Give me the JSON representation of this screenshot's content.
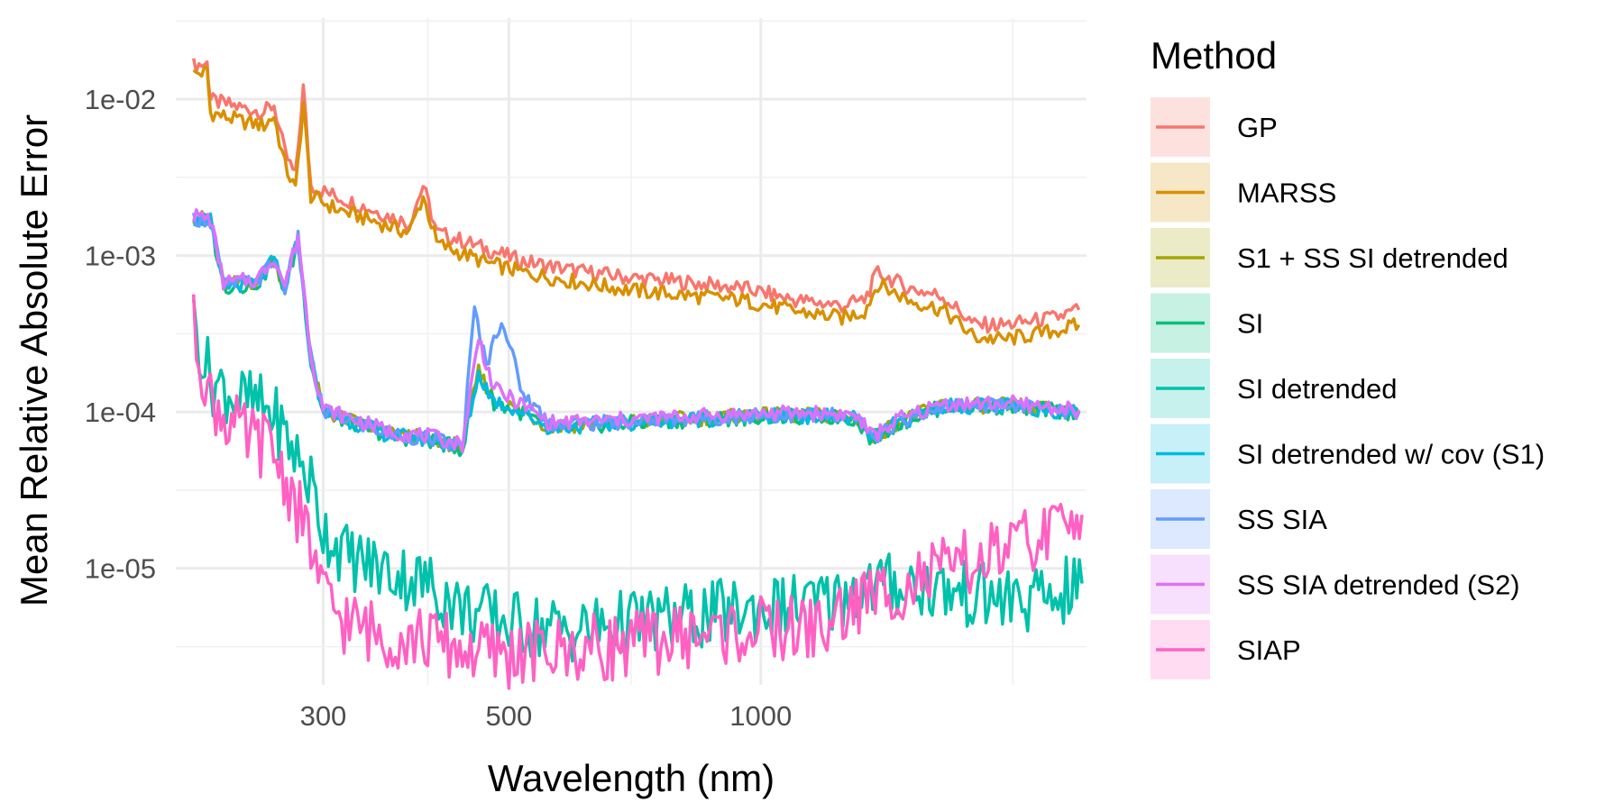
{
  "chart_data": {
    "type": "line",
    "title": "",
    "xlabel": "Wavelength (nm)",
    "ylabel": "Mean Relative Absolute Error",
    "x_scale": "log",
    "y_scale": "log",
    "xlim": [
      200,
      2450
    ],
    "ylim": [
      1.8e-06,
      0.033
    ],
    "x_ticks": [
      300,
      500,
      1000
    ],
    "x_tick_labels": [
      "300",
      "500",
      "1000"
    ],
    "y_ticks": [
      1e-05,
      0.0001,
      0.001,
      0.01
    ],
    "y_tick_labels": [
      "1e-05",
      "1e-04",
      "1e-03",
      "1e-02"
    ],
    "grid": true,
    "legend_title": "Method",
    "legend_position": "right",
    "series": [
      {
        "name": "GP",
        "color": "#F8766D",
        "points": [
          [
            210,
            0.0165
          ],
          [
            218,
            0.0168
          ],
          [
            220,
            0.0098
          ],
          [
            240,
            0.0088
          ],
          [
            255,
            0.0083
          ],
          [
            262,
            0.0092
          ],
          [
            270,
            0.0045
          ],
          [
            278,
            0.0032
          ],
          [
            284,
            0.0118
          ],
          [
            290,
            0.0028
          ],
          [
            310,
            0.0024
          ],
          [
            340,
            0.002
          ],
          [
            380,
            0.0016
          ],
          [
            395,
            0.0028
          ],
          [
            410,
            0.0014
          ],
          [
            430,
            0.0013
          ],
          [
            470,
            0.0011
          ],
          [
            520,
            0.00092
          ],
          [
            600,
            0.0008
          ],
          [
            700,
            0.00072
          ],
          [
            800,
            0.00068
          ],
          [
            950,
            0.00062
          ],
          [
            1100,
            0.00052
          ],
          [
            1250,
            0.00048
          ],
          [
            1330,
            0.00052
          ],
          [
            1380,
            0.00078
          ],
          [
            1500,
            0.00062
          ],
          [
            1650,
            0.00055
          ],
          [
            1800,
            0.00036
          ],
          [
            1950,
            0.00036
          ],
          [
            2100,
            0.00038
          ],
          [
            2250,
            0.0004
          ],
          [
            2400,
            0.00045
          ]
        ]
      },
      {
        "name": "MARSS",
        "color": "#D89000",
        "points": [
          [
            210,
            0.0145
          ],
          [
            218,
            0.015
          ],
          [
            220,
            0.0082
          ],
          [
            240,
            0.0072
          ],
          [
            255,
            0.0068
          ],
          [
            262,
            0.0078
          ],
          [
            270,
            0.0038
          ],
          [
            278,
            0.0026
          ],
          [
            284,
            0.0095
          ],
          [
            290,
            0.0024
          ],
          [
            310,
            0.002
          ],
          [
            340,
            0.0017
          ],
          [
            380,
            0.0014
          ],
          [
            395,
            0.0024
          ],
          [
            410,
            0.0012
          ],
          [
            430,
            0.00108
          ],
          [
            470,
            0.0009
          ],
          [
            520,
            0.00078
          ],
          [
            600,
            0.00068
          ],
          [
            700,
            0.0006
          ],
          [
            800,
            0.00056
          ],
          [
            950,
            0.00052
          ],
          [
            1100,
            0.00044
          ],
          [
            1250,
            0.0004
          ],
          [
            1330,
            0.00044
          ],
          [
            1380,
            0.00066
          ],
          [
            1500,
            0.00052
          ],
          [
            1650,
            0.00045
          ],
          [
            1800,
            0.0003
          ],
          [
            1950,
            0.00029
          ],
          [
            2100,
            0.00031
          ],
          [
            2250,
            0.00033
          ],
          [
            2400,
            0.00036
          ]
        ]
      },
      {
        "name": "S1 + SS SI detrended",
        "color": "#A3A500",
        "points": [
          [
            210,
            0.00175
          ],
          [
            220,
            0.0017
          ],
          [
            228,
            0.00065
          ],
          [
            250,
            0.00068
          ],
          [
            262,
            0.00095
          ],
          [
            270,
            0.00062
          ],
          [
            280,
            0.0013
          ],
          [
            290,
            0.00022
          ],
          [
            300,
            0.0001
          ],
          [
            330,
            8.5e-05
          ],
          [
            360,
            7.2e-05
          ],
          [
            400,
            6.8e-05
          ],
          [
            440,
            6e-05
          ],
          [
            460,
            0.00018
          ],
          [
            480,
            0.00012
          ],
          [
            520,
            0.0001
          ],
          [
            560,
            8e-05
          ],
          [
            650,
            8.5e-05
          ],
          [
            800,
            9e-05
          ],
          [
            1000,
            9.5e-05
          ],
          [
            1200,
            9.5e-05
          ],
          [
            1300,
            9.2e-05
          ],
          [
            1360,
            6.8e-05
          ],
          [
            1450,
            8.5e-05
          ],
          [
            1650,
            0.00011
          ],
          [
            2000,
            0.00011
          ],
          [
            2400,
            0.0001
          ]
        ]
      },
      {
        "name": "SI",
        "color": "#00BF7D",
        "points": [
          [
            210,
            0.0017
          ],
          [
            220,
            0.00165
          ],
          [
            228,
            0.00063
          ],
          [
            250,
            0.00066
          ],
          [
            262,
            0.00092
          ],
          [
            270,
            0.0006
          ],
          [
            280,
            0.00125
          ],
          [
            290,
            0.00021
          ],
          [
            300,
            9.8e-05
          ],
          [
            330,
            8.3e-05
          ],
          [
            360,
            7e-05
          ],
          [
            400,
            6.6e-05
          ],
          [
            440,
            5.8e-05
          ],
          [
            460,
            0.00017
          ],
          [
            480,
            0.000115
          ],
          [
            520,
            9.8e-05
          ],
          [
            560,
            7.8e-05
          ],
          [
            650,
            8.3e-05
          ],
          [
            800,
            8.8e-05
          ],
          [
            1000,
            9.3e-05
          ],
          [
            1200,
            9.3e-05
          ],
          [
            1300,
            9e-05
          ],
          [
            1360,
            6.6e-05
          ],
          [
            1450,
            8.3e-05
          ],
          [
            1650,
            0.000108
          ],
          [
            2000,
            0.000108
          ],
          [
            2400,
            9.8e-05
          ]
        ]
      },
      {
        "name": "SI detrended",
        "color": "#00C1AA",
        "points": [
          [
            210,
            0.00038
          ],
          [
            220,
            0.00016
          ],
          [
            240,
            0.00012
          ],
          [
            260,
            0.0001
          ],
          [
            275,
            6e-05
          ],
          [
            290,
            3.5e-05
          ],
          [
            300,
            1.8e-05
          ],
          [
            320,
            1.2e-05
          ],
          [
            350,
            1e-05
          ],
          [
            400,
            8e-06
          ],
          [
            440,
            5.5e-06
          ],
          [
            500,
            4.5e-06
          ],
          [
            600,
            4e-06
          ],
          [
            700,
            4.5e-06
          ],
          [
            850,
            5e-06
          ],
          [
            1000,
            5.5e-06
          ],
          [
            1200,
            6e-06
          ],
          [
            1300,
            7.5e-06
          ],
          [
            1500,
            8e-06
          ],
          [
            1700,
            7e-06
          ],
          [
            1900,
            6.5e-06
          ],
          [
            2100,
            6e-06
          ],
          [
            2300,
            7e-06
          ],
          [
            2420,
            8e-06
          ]
        ]
      },
      {
        "name": "SI detrended w/ cov (S1)",
        "color": "#00BAE0",
        "points": [
          [
            210,
            0.00172
          ],
          [
            220,
            0.00167
          ],
          [
            228,
            0.00064
          ],
          [
            250,
            0.00067
          ],
          [
            262,
            0.00093
          ],
          [
            270,
            0.00061
          ],
          [
            280,
            0.00127
          ],
          [
            290,
            0.000215
          ],
          [
            300,
            9.9e-05
          ],
          [
            330,
            8.4e-05
          ],
          [
            360,
            7.1e-05
          ],
          [
            400,
            6.7e-05
          ],
          [
            440,
            5.9e-05
          ],
          [
            460,
            0.000175
          ],
          [
            480,
            0.000118
          ],
          [
            520,
            9.9e-05
          ],
          [
            560,
            7.9e-05
          ],
          [
            650,
            8.4e-05
          ],
          [
            800,
            8.9e-05
          ],
          [
            1000,
            9.4e-05
          ],
          [
            1200,
            9.4e-05
          ],
          [
            1300,
            9.1e-05
          ],
          [
            1360,
            6.7e-05
          ],
          [
            1450,
            8.4e-05
          ],
          [
            1650,
            0.000109
          ],
          [
            2000,
            0.000109
          ],
          [
            2400,
            9.9e-05
          ]
        ]
      },
      {
        "name": "SS SIA",
        "color": "#619CFF",
        "points": [
          [
            210,
            0.00174
          ],
          [
            220,
            0.00168
          ],
          [
            228,
            0.00065
          ],
          [
            250,
            0.00068
          ],
          [
            262,
            0.00095
          ],
          [
            270,
            0.00062
          ],
          [
            280,
            0.0013
          ],
          [
            290,
            0.00022
          ],
          [
            300,
            0.0001
          ],
          [
            330,
            8.5e-05
          ],
          [
            360,
            7.2e-05
          ],
          [
            400,
            6.8e-05
          ],
          [
            440,
            6e-05
          ],
          [
            455,
            0.00045
          ],
          [
            470,
            0.0002
          ],
          [
            490,
            0.0004
          ],
          [
            520,
            0.00013
          ],
          [
            560,
            8.5e-05
          ],
          [
            650,
            8.5e-05
          ],
          [
            800,
            9e-05
          ],
          [
            1000,
            9.5e-05
          ],
          [
            1200,
            9.5e-05
          ],
          [
            1300,
            9.2e-05
          ],
          [
            1360,
            6.8e-05
          ],
          [
            1450,
            8.5e-05
          ],
          [
            1650,
            0.00011
          ],
          [
            2000,
            0.00011
          ],
          [
            2400,
            0.0001
          ]
        ]
      },
      {
        "name": "SS SIA detrended (S2)",
        "color": "#DB72FB",
        "points": [
          [
            210,
            0.0018
          ],
          [
            220,
            0.00172
          ],
          [
            228,
            0.00067
          ],
          [
            250,
            0.0007
          ],
          [
            262,
            0.00098
          ],
          [
            270,
            0.00064
          ],
          [
            280,
            0.00135
          ],
          [
            290,
            0.00023
          ],
          [
            300,
            0.000105
          ],
          [
            330,
            8.8e-05
          ],
          [
            360,
            7.5e-05
          ],
          [
            400,
            7e-05
          ],
          [
            440,
            6.2e-05
          ],
          [
            460,
            0.0003
          ],
          [
            480,
            0.00014
          ],
          [
            520,
            0.00011
          ],
          [
            560,
            8.5e-05
          ],
          [
            650,
            8.8e-05
          ],
          [
            800,
            9.3e-05
          ],
          [
            1000,
            9.8e-05
          ],
          [
            1200,
            9.8e-05
          ],
          [
            1300,
            9.5e-05
          ],
          [
            1360,
            7e-05
          ],
          [
            1450,
            8.8e-05
          ],
          [
            1650,
            0.000113
          ],
          [
            2000,
            0.000113
          ],
          [
            2400,
            0.000103
          ]
        ]
      },
      {
        "name": "SIAP",
        "color": "#FF61C3",
        "points": [
          [
            210,
            0.00035
          ],
          [
            220,
            0.00012
          ],
          [
            240,
            7e-05
          ],
          [
            260,
            6e-05
          ],
          [
            275,
            3e-05
          ],
          [
            290,
            1.4e-05
          ],
          [
            300,
            6.5e-06
          ],
          [
            320,
            4.5e-06
          ],
          [
            350,
            3.8e-06
          ],
          [
            400,
            3.5e-06
          ],
          [
            440,
            3e-06
          ],
          [
            500,
            2.8e-06
          ],
          [
            600,
            3e-06
          ],
          [
            700,
            3.3e-06
          ],
          [
            850,
            3.8e-06
          ],
          [
            1000,
            4e-06
          ],
          [
            1200,
            4.2e-06
          ],
          [
            1300,
            6e-06
          ],
          [
            1500,
            8e-06
          ],
          [
            1700,
            1e-05
          ],
          [
            1900,
            1.2e-05
          ],
          [
            2100,
            1.5e-05
          ],
          [
            2300,
            1.8e-05
          ],
          [
            2420,
            2.2e-05
          ]
        ]
      }
    ]
  }
}
